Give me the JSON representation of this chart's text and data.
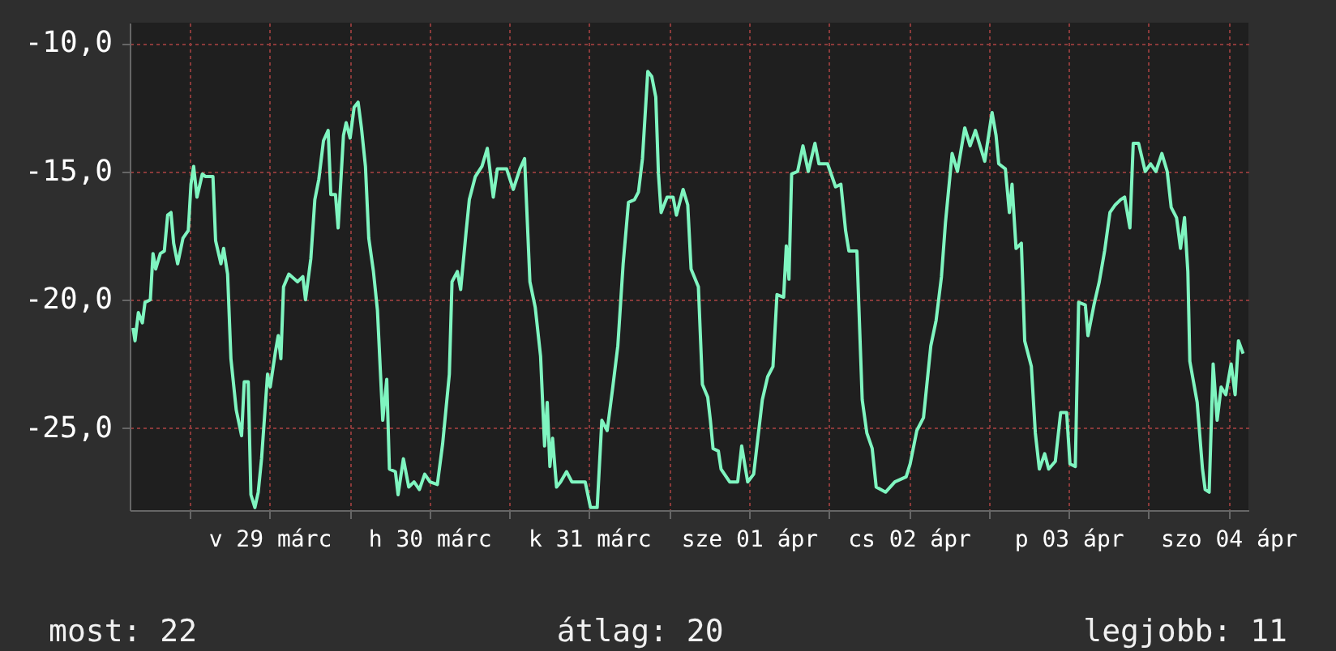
{
  "chart_data": {
    "type": "line",
    "x": [
      "--03-28T15:30",
      "--03-28T15:48",
      "--03-28T16:18",
      "--03-28T16:54",
      "--03-28T17:18",
      "--03-28T18:06",
      "--03-28T18:30",
      "--03-28T18:54",
      "--03-28T19:36",
      "--03-28T20:12",
      "--03-28T20:42",
      "--03-28T21:12",
      "--03-28T21:36",
      "--03-28T22:12",
      "--03-28T23:00",
      "--03-28T23:48",
      "--03-29T00:12",
      "--03-29T00:36",
      "--03-29T01:06",
      "--03-29T01:54",
      "--03-29T02:24",
      "--03-29T03:30",
      "--03-29T03:54",
      "--03-29T04:42",
      "--03-29T05:06",
      "--03-29T05:42",
      "--03-29T06:12",
      "--03-29T07:00",
      "--03-29T07:48",
      "--03-29T08:12",
      "--03-29T08:48",
      "--03-29T09:12",
      "--03-29T09:48",
      "--03-29T10:18",
      "--03-29T10:48",
      "--03-29T11:42",
      "--03-29T12:06",
      "--03-29T12:54",
      "--03-29T13:18",
      "--03-29T13:42",
      "--03-29T14:06",
      "--03-29T14:54",
      "--03-29T16:12",
      "--03-29T17:00",
      "--03-29T17:24",
      "--03-29T18:12",
      "--03-29T18:48",
      "--03-29T19:24",
      "--03-29T20:06",
      "--03-29T20:48",
      "--03-29T21:12",
      "--03-29T21:54",
      "--03-29T22:18",
      "--03-29T23:06",
      "--03-29T23:30",
      "--03-30T00:06",
      "--03-30T00:42",
      "--03-30T01:18",
      "--03-30T01:48",
      "--03-30T02:24",
      "--03-30T02:54",
      "--03-30T03:36",
      "--03-30T04:12",
      "--03-30T05:00",
      "--03-30T05:36",
      "--03-30T06:00",
      "--03-30T06:54",
      "--03-30T07:18",
      "--03-30T08:06",
      "--03-30T08:54",
      "--03-30T09:42",
      "--03-30T10:30",
      "--03-30T11:18",
      "--03-30T12:06",
      "--03-30T13:12",
      "--03-30T14:00",
      "--03-30T15:00",
      "--03-30T15:24",
      "--03-30T16:12",
      "--03-30T16:42",
      "--03-30T17:30",
      "--03-30T18:00",
      "--03-30T18:54",
      "--03-30T19:54",
      "--03-30T20:42",
      "--03-30T21:36",
      "--03-30T22:12",
      "--03-30T23:36",
      "--03-31T00:36",
      "--03-31T01:36",
      "--03-31T02:18",
      "--03-31T02:36",
      "--03-31T03:06",
      "--03-31T03:54",
      "--03-31T04:42",
      "--03-31T05:18",
      "--03-31T05:42",
      "--03-31T06:06",
      "--03-31T06:30",
      "--03-31T07:06",
      "--03-31T07:42",
      "--03-31T08:36",
      "--03-31T09:24",
      "--03-31T11:24",
      "--03-31T12:12",
      "--03-31T13:12",
      "--03-31T13:54",
      "--03-31T14:42",
      "--03-31T15:30",
      "--03-31T16:18",
      "--03-31T17:06",
      "--03-31T17:54",
      "--03-31T18:48",
      "--03-31T19:24",
      "--03-31T20:00",
      "--03-31T20:48",
      "--03-31T21:24",
      "--03-31T22:00",
      "--03-31T22:24",
      "--03-31T22:48",
      "--03-31T23:42",
      "--04-01T00:36",
      "--04-01T01:06",
      "--04-01T02:06",
      "--04-01T02:48",
      "--04-01T03:18",
      "--04-01T04:24",
      "--04-01T05:00",
      "--04-01T05:48",
      "--04-01T06:12",
      "--04-01T06:36",
      "--04-01T07:24",
      "--04-01T07:48",
      "--04-01T09:06",
      "--04-01T10:18",
      "--04-01T10:54",
      "--04-01T11:48",
      "--04-01T12:42",
      "--04-01T14:00",
      "--04-01T14:48",
      "--04-01T15:36",
      "--04-01T16:12",
      "--04-01T17:12",
      "--04-01T17:36",
      "--04-01T18:00",
      "--04-01T18:24",
      "--04-01T19:18",
      "--04-01T20:06",
      "--04-01T20:54",
      "--04-01T21:54",
      "--04-01T22:30",
      "--04-01T23:48",
      "--04-02T01:00",
      "--04-02T01:48",
      "--04-02T02:30",
      "--04-02T03:00",
      "--04-02T04:12",
      "--04-02T05:00",
      "--04-02T05:42",
      "--04-02T06:30",
      "--04-02T07:06",
      "--04-02T08:30",
      "--04-02T09:54",
      "--04-02T11:36",
      "--04-02T12:12",
      "--04-02T13:12",
      "--04-02T14:12",
      "--04-02T15:18",
      "--04-02T16:06",
      "--04-02T16:54",
      "--04-02T17:30",
      "--04-02T18:30",
      "--04-02T19:18",
      "--04-02T20:24",
      "--04-02T21:12",
      "--04-02T22:00",
      "--04-02T23:24",
      "--04-03T00:30",
      "--04-03T01:06",
      "--04-03T01:30",
      "--04-03T02:30",
      "--04-03T03:06",
      "--04-03T03:30",
      "--04-03T04:06",
      "--04-03T04:54",
      "--04-03T05:24",
      "--04-03T06:24",
      "--04-03T07:00",
      "--04-03T07:36",
      "--04-03T08:24",
      "--04-03T09:00",
      "--04-03T10:00",
      "--04-03T10:48",
      "--04-03T11:42",
      "--04-03T12:12",
      "--04-03T13:00",
      "--04-03T13:30",
      "--04-03T14:30",
      "--04-03T14:54",
      "--04-03T15:48",
      "--04-03T16:36",
      "--04-03T17:24",
      "--04-03T18:12",
      "--04-03T19:00",
      "--04-03T19:48",
      "--04-03T20:24",
      "--04-03T21:12",
      "--04-03T21:42",
      "--04-03T22:30",
      "--04-03T23:30",
      "--04-04T00:18",
      "--04-04T01:06",
      "--04-04T02:00",
      "--04-04T02:48",
      "--04-04T03:24",
      "--04-04T04:12",
      "--04-04T04:48",
      "--04-04T05:24",
      "--04-04T05:54",
      "--04-04T06:12",
      "--04-04T07:18",
      "--04-04T08:06",
      "--04-04T08:30",
      "--04-04T09:06",
      "--04-04T09:42",
      "--04-04T10:18",
      "--04-04T10:54",
      "--04-04T11:36",
      "--04-04T12:24",
      "--04-04T13:00",
      "--04-04T13:30",
      "--04-04T14:12"
    ],
    "series": [
      {
        "color": "#7ff5c0",
        "values": [
          -21.1,
          -21.6,
          -20.5,
          -20.9,
          -20.1,
          -20.0,
          -18.2,
          -18.8,
          -18.2,
          -18.1,
          -16.7,
          -16.6,
          -17.8,
          -18.6,
          -17.6,
          -17.3,
          -15.5,
          -14.8,
          -16.0,
          -15.1,
          -15.2,
          -15.2,
          -17.7,
          -18.6,
          -18.0,
          -19.0,
          -22.3,
          -24.3,
          -25.3,
          -23.2,
          -23.2,
          -27.6,
          -28.1,
          -27.5,
          -26.2,
          -22.9,
          -23.4,
          -22.0,
          -21.4,
          -22.3,
          -19.5,
          -19.0,
          -19.3,
          -19.1,
          -20.0,
          -18.4,
          -16.1,
          -15.3,
          -13.8,
          -13.4,
          -15.9,
          -15.9,
          -17.2,
          -13.6,
          -13.1,
          -13.7,
          -12.5,
          -12.3,
          -13.3,
          -14.8,
          -17.6,
          -18.9,
          -20.4,
          -24.7,
          -23.1,
          -26.6,
          -26.7,
          -27.6,
          -26.2,
          -27.3,
          -27.1,
          -27.4,
          -26.8,
          -27.1,
          -27.2,
          -25.6,
          -22.9,
          -19.3,
          -18.9,
          -19.6,
          -17.4,
          -16.1,
          -15.2,
          -14.8,
          -14.1,
          -16.0,
          -14.9,
          -14.9,
          -15.7,
          -14.9,
          -14.5,
          -16.3,
          -19.3,
          -20.3,
          -22.2,
          -25.7,
          -24.0,
          -26.5,
          -25.4,
          -27.3,
          -27.1,
          -26.7,
          -27.1,
          -27.1,
          -28.1,
          -28.1,
          -24.7,
          -25.1,
          -23.5,
          -21.8,
          -18.6,
          -16.2,
          -16.1,
          -15.8,
          -14.5,
          -11.1,
          -11.3,
          -12.1,
          -15.1,
          -16.6,
          -16.0,
          -16.0,
          -16.7,
          -15.7,
          -16.3,
          -18.8,
          -19.5,
          -23.3,
          -23.8,
          -24.7,
          -25.8,
          -25.9,
          -26.6,
          -27.1,
          -27.1,
          -25.7,
          -27.1,
          -26.8,
          -23.9,
          -23.0,
          -22.6,
          -19.8,
          -19.9,
          -17.9,
          -19.2,
          -15.1,
          -15.0,
          -14.0,
          -15.0,
          -13.9,
          -14.7,
          -14.7,
          -15.6,
          -15.5,
          -17.3,
          -18.1,
          -18.1,
          -23.9,
          -25.2,
          -25.8,
          -27.3,
          -27.5,
          -27.1,
          -26.9,
          -26.4,
          -25.1,
          -24.6,
          -21.8,
          -20.8,
          -19.1,
          -17.0,
          -14.3,
          -15.0,
          -13.3,
          -14.0,
          -13.4,
          -14.6,
          -12.7,
          -13.6,
          -14.7,
          -14.9,
          -16.6,
          -15.5,
          -18.0,
          -17.8,
          -21.6,
          -22.6,
          -25.2,
          -26.6,
          -26.0,
          -26.6,
          -26.3,
          -24.4,
          -24.4,
          -26.4,
          -26.5,
          -20.1,
          -20.2,
          -21.4,
          -20.2,
          -19.3,
          -18.1,
          -16.6,
          -16.3,
          -16.1,
          -16.0,
          -17.2,
          -13.9,
          -13.9,
          -15.0,
          -14.7,
          -15.0,
          -14.3,
          -15.0,
          -16.4,
          -16.8,
          -18.0,
          -16.8,
          -18.9,
          -22.4,
          -24.0,
          -26.6,
          -27.4,
          -27.5,
          -22.5,
          -24.7,
          -23.4,
          -23.7,
          -22.5,
          -23.7,
          -21.6,
          -22.1
        ]
      }
    ],
    "xlim": [
      "--03-28T15:00",
      "--04-04T15:00"
    ],
    "xticks": [
      {
        "value": "--03-29T00:00",
        "label": null
      },
      {
        "value": "--03-29T12:00",
        "label": "v 29 márc"
      },
      {
        "value": "--03-30T00:00",
        "label": null
      },
      {
        "value": "--03-30T12:00",
        "label": "h 30 márc"
      },
      {
        "value": "--03-31T00:00",
        "label": null
      },
      {
        "value": "--03-31T12:00",
        "label": "k 31 márc"
      },
      {
        "value": "--04-01T00:00",
        "label": null
      },
      {
        "value": "--04-01T12:00",
        "label": "sze 01 ápr"
      },
      {
        "value": "--04-02T00:00",
        "label": null
      },
      {
        "value": "--04-02T12:00",
        "label": "cs 02 ápr"
      },
      {
        "value": "--04-03T00:00",
        "label": null
      },
      {
        "value": "--04-03T12:00",
        "label": "p 03 ápr"
      },
      {
        "value": "--04-04T00:00",
        "label": null
      },
      {
        "value": "--04-04T12:00",
        "label": "szo 04 ápr"
      }
    ],
    "ylim": [
      -28.2,
      -9.2
    ],
    "yticks": [
      {
        "value": -25,
        "label": "-25,0"
      },
      {
        "value": -20,
        "label": "-20,0"
      },
      {
        "value": -15,
        "label": "-15,0"
      },
      {
        "value": -10,
        "label": "-10,0"
      }
    ],
    "grid": true,
    "annotations": [
      "most: 22",
      "átlag: 20",
      "legjobb: 11"
    ]
  }
}
